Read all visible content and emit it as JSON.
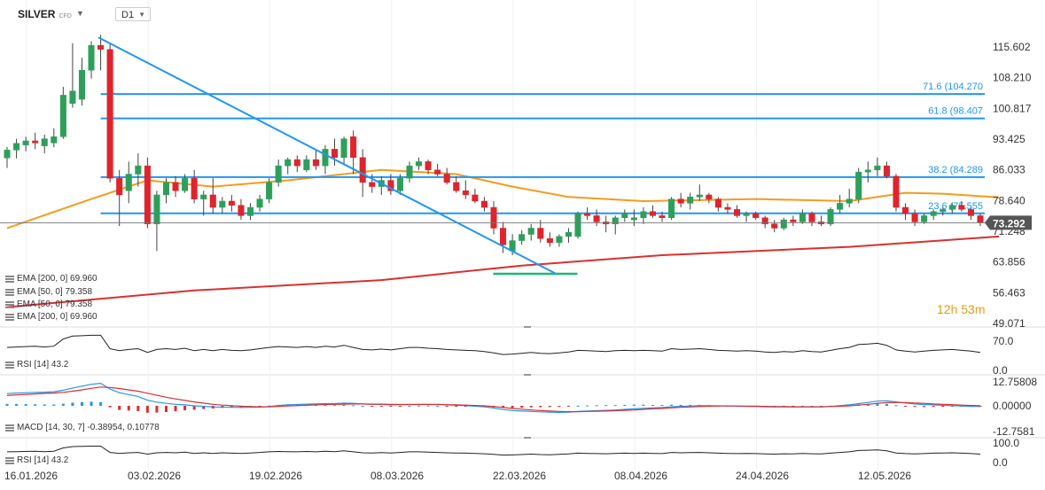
{
  "header": {
    "symbol": "SILVER",
    "symbol_type": "CFD",
    "timeframe": "D1"
  },
  "countdown": {
    "hours": "12",
    "h_unit": "h",
    "minutes": "53",
    "m_unit": "m"
  },
  "colors": {
    "up": "#2ca05a",
    "down": "#e0242c",
    "ema50": "#f39c1e",
    "ema200": "#d93030",
    "trend": "#2196f3",
    "fib": "#2196f3",
    "support": "#21b573",
    "price_tag": "#555555",
    "macd_main": "#2196f3",
    "macd_signal": "#d93030"
  },
  "indicators": [
    {
      "label": "EMA [200, 0] 69.960"
    },
    {
      "label": "EMA [50, 0] 79.358"
    },
    {
      "label": "EMA [50, 0] 79.358"
    },
    {
      "label": "EMA [200, 0] 69.960"
    }
  ],
  "rsi_pane_label": "RSI [14] 43.2",
  "macd_pane_label": "MACD [14, 30, 7] -0.38954, 0.10778",
  "rsi2_pane_label": "RSI [14] 43.2",
  "chart_data": {
    "type": "candlestick",
    "price_axis_ticks": [
      "115.602",
      "108.210",
      "100.817",
      "93.425",
      "86.033",
      "78.640",
      "71.248",
      "63.856",
      "56.463",
      "49.071"
    ],
    "last_price": "73.292",
    "x_tick_labels": [
      "16.01.2026",
      "03.02.2026",
      "19.02.2026",
      "08.03.2026",
      "22.03.2026",
      "08.04.2026",
      "24.04.2026",
      "12.05.2026"
    ],
    "fib_levels": [
      {
        "label": "71.6 (104.270",
        "price": 104.27
      },
      {
        "label": "61.8 (98.407",
        "price": 98.407
      },
      {
        "label": "38.2 (84.289",
        "price": 84.289
      },
      {
        "label": "23.6 (75.555",
        "price": 75.555
      }
    ],
    "trendline": [
      {
        "x": 0,
        "price": 117.9
      },
      {
        "x": 58.6,
        "price": 61.1
      }
    ],
    "support_line": [
      {
        "x": 51,
        "price": 61.0
      },
      {
        "x": 60,
        "price": 61.0
      }
    ],
    "candles": [
      {
        "o": 88.9,
        "h": 91.5,
        "l": 86.5,
        "c": 90.8
      },
      {
        "o": 90.8,
        "h": 93.5,
        "l": 88.8,
        "c": 92.4
      },
      {
        "o": 92.0,
        "h": 94.0,
        "l": 90.5,
        "c": 93.0
      },
      {
        "o": 93.0,
        "h": 95.0,
        "l": 91.0,
        "c": 92.5
      },
      {
        "o": 91.8,
        "h": 94.5,
        "l": 90.0,
        "c": 93.5
      },
      {
        "o": 92.5,
        "h": 96.0,
        "l": 91.5,
        "c": 94.0
      },
      {
        "o": 94.0,
        "h": 106.0,
        "l": 93.5,
        "c": 104.0
      },
      {
        "o": 102.0,
        "h": 116.5,
        "l": 101.0,
        "c": 105.0
      },
      {
        "o": 103.0,
        "h": 113.0,
        "l": 101.5,
        "c": 110.0
      },
      {
        "o": 110.0,
        "h": 117.0,
        "l": 108.0,
        "c": 116.0
      },
      {
        "o": 116.0,
        "h": 118.5,
        "l": 110.0,
        "c": 115.0
      },
      {
        "o": 115.0,
        "h": 116.5,
        "l": 83.0,
        "c": 84.0
      },
      {
        "o": 84.0,
        "h": 86.0,
        "l": 72.5,
        "c": 80.0
      },
      {
        "o": 81.0,
        "h": 88.0,
        "l": 78.0,
        "c": 85.0
      },
      {
        "o": 85.0,
        "h": 90.0,
        "l": 82.0,
        "c": 87.0
      },
      {
        "o": 87.0,
        "h": 89.0,
        "l": 72.0,
        "c": 73.0
      },
      {
        "o": 73.0,
        "h": 81.0,
        "l": 66.5,
        "c": 80.0
      },
      {
        "o": 80.0,
        "h": 84.0,
        "l": 78.0,
        "c": 83.0
      },
      {
        "o": 83.0,
        "h": 84.5,
        "l": 79.5,
        "c": 81.0
      },
      {
        "o": 81.0,
        "h": 85.0,
        "l": 80.5,
        "c": 84.0
      },
      {
        "o": 84.0,
        "h": 86.0,
        "l": 78.0,
        "c": 79.0
      },
      {
        "o": 79.0,
        "h": 81.0,
        "l": 75.0,
        "c": 80.0
      },
      {
        "o": 80.0,
        "h": 84.0,
        "l": 75.5,
        "c": 77.0
      },
      {
        "o": 77.0,
        "h": 79.5,
        "l": 75.5,
        "c": 78.5
      },
      {
        "o": 78.5,
        "h": 80.0,
        "l": 76.0,
        "c": 77.5
      },
      {
        "o": 77.5,
        "h": 79.0,
        "l": 74.0,
        "c": 75.0
      },
      {
        "o": 75.0,
        "h": 78.0,
        "l": 74.0,
        "c": 77.0
      },
      {
        "o": 77.0,
        "h": 80.0,
        "l": 76.0,
        "c": 79.0
      },
      {
        "o": 79.0,
        "h": 84.0,
        "l": 78.0,
        "c": 83.0
      },
      {
        "o": 83.0,
        "h": 88.5,
        "l": 82.0,
        "c": 87.0
      },
      {
        "o": 87.0,
        "h": 89.0,
        "l": 85.0,
        "c": 88.5
      },
      {
        "o": 88.5,
        "h": 89.5,
        "l": 85.5,
        "c": 87.0
      },
      {
        "o": 86.0,
        "h": 89.5,
        "l": 85.5,
        "c": 88.5
      },
      {
        "o": 88.5,
        "h": 91.0,
        "l": 86.0,
        "c": 87.0
      },
      {
        "o": 87.0,
        "h": 92.0,
        "l": 85.0,
        "c": 91.0
      },
      {
        "o": 91.0,
        "h": 93.5,
        "l": 87.0,
        "c": 89.0
      },
      {
        "o": 89.0,
        "h": 94.0,
        "l": 87.5,
        "c": 93.5
      },
      {
        "o": 94.0,
        "h": 95.5,
        "l": 85.0,
        "c": 89.0
      },
      {
        "o": 89.0,
        "h": 91.0,
        "l": 79.5,
        "c": 83.0
      },
      {
        "o": 83.0,
        "h": 85.0,
        "l": 80.5,
        "c": 82.0
      },
      {
        "o": 82.0,
        "h": 84.5,
        "l": 80.0,
        "c": 83.5
      },
      {
        "o": 83.5,
        "h": 85.0,
        "l": 80.0,
        "c": 81.0
      },
      {
        "o": 81.0,
        "h": 85.0,
        "l": 80.0,
        "c": 84.0
      },
      {
        "o": 84.0,
        "h": 88.0,
        "l": 83.0,
        "c": 87.0
      },
      {
        "o": 87.0,
        "h": 89.0,
        "l": 86.0,
        "c": 88.0
      },
      {
        "o": 88.0,
        "h": 88.5,
        "l": 85.0,
        "c": 86.0
      },
      {
        "o": 86.0,
        "h": 87.5,
        "l": 84.5,
        "c": 85.0
      },
      {
        "o": 85.0,
        "h": 86.5,
        "l": 82.5,
        "c": 83.0
      },
      {
        "o": 83.0,
        "h": 84.5,
        "l": 80.5,
        "c": 81.0
      },
      {
        "o": 81.0,
        "h": 83.5,
        "l": 79.0,
        "c": 80.0
      },
      {
        "o": 80.0,
        "h": 81.5,
        "l": 78.0,
        "c": 78.5
      },
      {
        "o": 78.5,
        "h": 79.5,
        "l": 76.0,
        "c": 77.0
      },
      {
        "o": 77.0,
        "h": 78.5,
        "l": 70.5,
        "c": 72.0
      },
      {
        "o": 72.0,
        "h": 73.5,
        "l": 66.0,
        "c": 68.0
      },
      {
        "o": 66.5,
        "h": 70.5,
        "l": 65.5,
        "c": 69.0
      },
      {
        "o": 69.0,
        "h": 71.5,
        "l": 68.0,
        "c": 70.5
      },
      {
        "o": 70.5,
        "h": 73.0,
        "l": 69.0,
        "c": 72.0
      },
      {
        "o": 72.0,
        "h": 74.0,
        "l": 68.5,
        "c": 69.5
      },
      {
        "o": 69.5,
        "h": 71.0,
        "l": 67.5,
        "c": 68.5
      },
      {
        "o": 68.5,
        "h": 70.5,
        "l": 67.5,
        "c": 70.0
      },
      {
        "o": 70.0,
        "h": 72.0,
        "l": 68.5,
        "c": 71.0
      },
      {
        "o": 70.0,
        "h": 76.0,
        "l": 69.5,
        "c": 75.5
      },
      {
        "o": 75.5,
        "h": 77.0,
        "l": 74.0,
        "c": 75.0
      },
      {
        "o": 75.0,
        "h": 76.5,
        "l": 72.5,
        "c": 73.5
      },
      {
        "o": 73.5,
        "h": 75.0,
        "l": 71.0,
        "c": 73.0
      },
      {
        "o": 73.0,
        "h": 75.0,
        "l": 70.5,
        "c": 74.5
      },
      {
        "o": 74.5,
        "h": 76.5,
        "l": 73.5,
        "c": 75.5
      },
      {
        "o": 74.0,
        "h": 76.5,
        "l": 72.5,
        "c": 74.5
      },
      {
        "o": 74.5,
        "h": 77.0,
        "l": 73.0,
        "c": 76.0
      },
      {
        "o": 76.0,
        "h": 77.5,
        "l": 74.5,
        "c": 75.0
      },
      {
        "o": 75.0,
        "h": 76.0,
        "l": 73.5,
        "c": 74.5
      },
      {
        "o": 74.5,
        "h": 79.5,
        "l": 74.0,
        "c": 79.0
      },
      {
        "o": 79.0,
        "h": 80.5,
        "l": 77.0,
        "c": 78.0
      },
      {
        "o": 78.0,
        "h": 80.5,
        "l": 76.5,
        "c": 79.5
      },
      {
        "o": 79.5,
        "h": 82.5,
        "l": 78.5,
        "c": 80.0
      },
      {
        "o": 80.0,
        "h": 80.5,
        "l": 78.0,
        "c": 79.0
      },
      {
        "o": 79.0,
        "h": 79.5,
        "l": 76.0,
        "c": 77.0
      },
      {
        "o": 77.0,
        "h": 78.0,
        "l": 75.5,
        "c": 76.5
      },
      {
        "o": 76.5,
        "h": 77.5,
        "l": 74.5,
        "c": 75.0
      },
      {
        "o": 75.0,
        "h": 76.0,
        "l": 73.5,
        "c": 75.5
      },
      {
        "o": 75.5,
        "h": 76.0,
        "l": 74.0,
        "c": 74.5
      },
      {
        "o": 74.5,
        "h": 75.0,
        "l": 72.0,
        "c": 73.0
      },
      {
        "o": 73.0,
        "h": 74.0,
        "l": 71.0,
        "c": 72.0
      },
      {
        "o": 72.0,
        "h": 74.5,
        "l": 71.5,
        "c": 74.0
      },
      {
        "o": 74.0,
        "h": 75.0,
        "l": 72.5,
        "c": 73.5
      },
      {
        "o": 73.5,
        "h": 76.5,
        "l": 73.0,
        "c": 75.5
      },
      {
        "o": 75.5,
        "h": 76.0,
        "l": 72.5,
        "c": 73.5
      },
      {
        "o": 73.5,
        "h": 75.0,
        "l": 72.5,
        "c": 73.0
      },
      {
        "o": 73.0,
        "h": 77.0,
        "l": 72.5,
        "c": 76.5
      },
      {
        "o": 76.5,
        "h": 80.0,
        "l": 75.5,
        "c": 78.0
      },
      {
        "o": 78.0,
        "h": 81.5,
        "l": 77.0,
        "c": 79.0
      },
      {
        "o": 79.0,
        "h": 86.5,
        "l": 78.0,
        "c": 85.5
      },
      {
        "o": 85.5,
        "h": 88.0,
        "l": 83.0,
        "c": 86.0
      },
      {
        "o": 86.0,
        "h": 89.0,
        "l": 84.5,
        "c": 87.0
      },
      {
        "o": 87.0,
        "h": 88.0,
        "l": 84.0,
        "c": 84.5
      },
      {
        "o": 84.5,
        "h": 85.0,
        "l": 76.0,
        "c": 77.0
      },
      {
        "o": 77.0,
        "h": 78.0,
        "l": 74.0,
        "c": 75.5
      },
      {
        "o": 75.5,
        "h": 76.5,
        "l": 72.5,
        "c": 73.5
      },
      {
        "o": 73.5,
        "h": 75.5,
        "l": 73.0,
        "c": 75.0
      },
      {
        "o": 75.0,
        "h": 76.5,
        "l": 74.0,
        "c": 76.0
      },
      {
        "o": 76.0,
        "h": 77.0,
        "l": 75.0,
        "c": 76.5
      },
      {
        "o": 76.5,
        "h": 78.0,
        "l": 75.5,
        "c": 77.5
      },
      {
        "o": 77.5,
        "h": 78.5,
        "l": 76.0,
        "c": 76.5
      },
      {
        "o": 76.5,
        "h": 77.0,
        "l": 74.0,
        "c": 75.0
      },
      {
        "o": 75.0,
        "h": 75.5,
        "l": 72.5,
        "c": 73.3
      }
    ],
    "ema50": [
      [
        0,
        72.0
      ],
      [
        9,
        79.0
      ],
      [
        15,
        83.5
      ],
      [
        22,
        82.0
      ],
      [
        30,
        83.5
      ],
      [
        40,
        86.0
      ],
      [
        48,
        85.0
      ],
      [
        54,
        82.0
      ],
      [
        60,
        79.5
      ],
      [
        68,
        78.5
      ],
      [
        80,
        79.0
      ],
      [
        90,
        78.5
      ],
      [
        96,
        80.5
      ],
      [
        100,
        80.3
      ],
      [
        106,
        79.4
      ]
    ],
    "ema200": [
      [
        0,
        53.0
      ],
      [
        20,
        57.0
      ],
      [
        40,
        59.5
      ],
      [
        55,
        63.0
      ],
      [
        70,
        65.5
      ],
      [
        90,
        67.5
      ],
      [
        106,
        70.0
      ]
    ],
    "rsi_axis_ticks": [
      "70.0",
      "0.0"
    ],
    "rsi": [
      55,
      56,
      57,
      58,
      56,
      58,
      75,
      82,
      83,
      84,
      84,
      52,
      47,
      50,
      52,
      43,
      50,
      52,
      50,
      53,
      47,
      50,
      47,
      50,
      48,
      47,
      49,
      52,
      55,
      57,
      56,
      55,
      57,
      55,
      58,
      56,
      60,
      55,
      50,
      49,
      51,
      49,
      52,
      55,
      55,
      53,
      52,
      50,
      49,
      48,
      47,
      45,
      42,
      38,
      39,
      41,
      43,
      41,
      40,
      42,
      44,
      48,
      47,
      46,
      45,
      47,
      48,
      47,
      48,
      47,
      46,
      52,
      50,
      51,
      52,
      50,
      48,
      47,
      46,
      47,
      46,
      44,
      43,
      45,
      44,
      47,
      45,
      44,
      48,
      52,
      55,
      62,
      63,
      65,
      60,
      49,
      46,
      44,
      46,
      48,
      49,
      50,
      48,
      46,
      43
    ],
    "macd_axis_ticks": [
      "12.75808",
      "0.00000",
      "-12.7581"
    ],
    "macd": [
      6.5,
      6.8,
      7.0,
      7.2,
      7.3,
      7.5,
      8.3,
      9.5,
      10.5,
      11.5,
      12.0,
      9.0,
      7.0,
      6.0,
      5.0,
      3.0,
      2.0,
      1.3,
      0.8,
      0.5,
      0.0,
      -0.3,
      -0.6,
      -0.7,
      -0.8,
      -0.9,
      -0.8,
      -0.7,
      -0.4,
      0.2,
      0.5,
      0.7,
      0.9,
      1.0,
      1.2,
      1.2,
      1.4,
      1.3,
      1.0,
      0.8,
      0.7,
      0.5,
      0.6,
      0.7,
      0.8,
      0.8,
      0.7,
      0.5,
      0.3,
      0.1,
      -0.2,
      -0.5,
      -1.2,
      -2.0,
      -2.5,
      -2.8,
      -3.0,
      -3.2,
      -3.4,
      -3.5,
      -3.4,
      -3.0,
      -2.8,
      -2.6,
      -2.4,
      -2.2,
      -1.9,
      -1.6,
      -1.3,
      -1.1,
      -0.9,
      -0.5,
      -0.3,
      -0.1,
      0.1,
      0.1,
      0.0,
      -0.1,
      -0.2,
      -0.3,
      -0.4,
      -0.5,
      -0.6,
      -0.6,
      -0.6,
      -0.5,
      -0.5,
      -0.5,
      -0.3,
      0.1,
      0.5,
      1.2,
      1.8,
      2.5,
      2.7,
      2.1,
      1.5,
      1.0,
      0.7,
      0.5,
      0.3,
      0.1,
      -0.1,
      -0.3,
      -0.39
    ],
    "macd_signal": [
      5.5,
      5.8,
      6.1,
      6.4,
      6.6,
      6.8,
      7.2,
      7.8,
      8.5,
      9.3,
      10.0,
      9.8,
      9.2,
      8.5,
      7.8,
      6.7,
      5.6,
      4.6,
      3.7,
      2.9,
      2.1,
      1.4,
      0.8,
      0.4,
      0.1,
      -0.2,
      -0.4,
      -0.5,
      -0.5,
      -0.3,
      -0.1,
      0.1,
      0.3,
      0.5,
      0.7,
      0.8,
      0.9,
      1.0,
      1.0,
      0.9,
      0.9,
      0.8,
      0.7,
      0.7,
      0.7,
      0.7,
      0.7,
      0.6,
      0.5,
      0.4,
      0.2,
      0.0,
      -0.4,
      -0.9,
      -1.4,
      -1.8,
      -2.2,
      -2.5,
      -2.8,
      -3.0,
      -3.1,
      -3.1,
      -3.0,
      -2.9,
      -2.8,
      -2.6,
      -2.4,
      -2.2,
      -1.9,
      -1.6,
      -1.4,
      -1.1,
      -0.8,
      -0.6,
      -0.4,
      -0.2,
      -0.1,
      -0.1,
      -0.1,
      -0.2,
      -0.2,
      -0.3,
      -0.4,
      -0.4,
      -0.5,
      -0.5,
      -0.5,
      -0.5,
      -0.4,
      -0.2,
      0.0,
      0.4,
      0.8,
      1.3,
      1.7,
      1.8,
      1.7,
      1.5,
      1.3,
      1.0,
      0.8,
      0.6,
      0.4,
      0.2,
      0.11
    ],
    "macd_hist": [
      1.0,
      1.0,
      0.9,
      0.8,
      0.7,
      0.7,
      1.1,
      1.7,
      2.0,
      2.2,
      2.0,
      -0.8,
      -2.2,
      -2.5,
      -2.8,
      -3.7,
      -3.6,
      -3.3,
      -2.9,
      -2.4,
      -2.1,
      -1.7,
      -1.4,
      -1.1,
      -0.9,
      -0.7,
      -0.4,
      -0.2,
      0.1,
      0.5,
      0.6,
      0.6,
      0.6,
      0.5,
      0.5,
      0.4,
      0.5,
      0.3,
      0.0,
      -0.1,
      -0.2,
      -0.3,
      -0.1,
      0.0,
      0.1,
      0.1,
      0.0,
      -0.1,
      -0.2,
      -0.3,
      -0.4,
      -0.5,
      -0.8,
      -1.1,
      -1.1,
      -1.0,
      -0.8,
      -0.7,
      -0.6,
      -0.5,
      -0.3,
      0.1,
      0.2,
      0.3,
      0.4,
      0.4,
      0.5,
      0.6,
      0.6,
      0.5,
      0.5,
      0.6,
      0.5,
      0.5,
      0.5,
      0.3,
      0.1,
      0.0,
      -0.1,
      -0.1,
      -0.2,
      -0.2,
      -0.2,
      -0.2,
      -0.1,
      0.0,
      0.0,
      0.0,
      0.1,
      0.3,
      0.5,
      0.8,
      1.0,
      1.2,
      1.0,
      0.3,
      -0.2,
      -0.5,
      -0.6,
      -0.5,
      -0.5,
      -0.5,
      -0.5,
      -0.5,
      -0.5
    ],
    "rsi2_axis_ticks": [
      "100.0",
      "0.0"
    ]
  }
}
